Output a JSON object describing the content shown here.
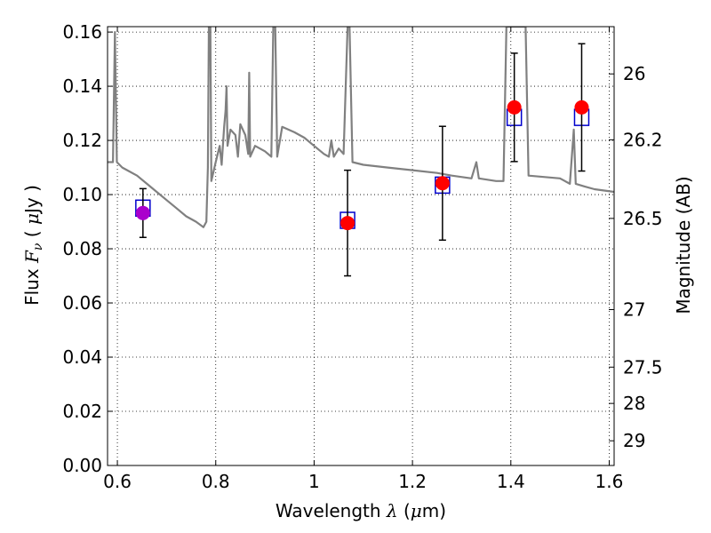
{
  "chart_data": {
    "type": "scatter",
    "xlabel": {
      "prefix": "Wavelength ",
      "lambda": "λ",
      "unit_open": " (",
      "mu": "μ",
      "unit_close": "m)"
    },
    "ylabel": {
      "prefix": "Flux ",
      "F": "F",
      "nu": "ν",
      "unit_open": " ( ",
      "mu": "μ",
      "unit_close": "Jy )"
    },
    "y2label": "Magnitude (AB)",
    "xlim": [
      0.58,
      1.61
    ],
    "ylim": [
      0.0,
      0.162
    ],
    "x_ticks": [
      {
        "value": 0.6,
        "label": "0.6"
      },
      {
        "value": 0.8,
        "label": "0.8"
      },
      {
        "value": 1.0,
        "label": "1"
      },
      {
        "value": 1.2,
        "label": "1.2"
      },
      {
        "value": 1.4,
        "label": "1.4"
      },
      {
        "value": 1.6,
        "label": "1.6"
      }
    ],
    "y_ticks": [
      {
        "value": 0.0,
        "label": "0.00"
      },
      {
        "value": 0.02,
        "label": "0.02"
      },
      {
        "value": 0.04,
        "label": "0.04"
      },
      {
        "value": 0.06,
        "label": "0.06"
      },
      {
        "value": 0.08,
        "label": "0.08"
      },
      {
        "value": 0.1,
        "label": "0.10"
      },
      {
        "value": 0.12,
        "label": "0.12"
      },
      {
        "value": 0.14,
        "label": "0.14"
      },
      {
        "value": 0.16,
        "label": "0.16"
      }
    ],
    "mag_ticks": [
      {
        "value": 26,
        "label": "26"
      },
      {
        "value": 26.2,
        "label": "26.2"
      },
      {
        "value": 26.5,
        "label": "26.5"
      },
      {
        "value": 27,
        "label": "27"
      },
      {
        "value": 27.5,
        "label": "27.5"
      },
      {
        "value": 28,
        "label": "28"
      },
      {
        "value": 29,
        "label": "29"
      }
    ],
    "grid": true,
    "observed": [
      {
        "x": 0.652,
        "y": 0.0932,
        "err": 0.009,
        "color": "#aa00cc"
      },
      {
        "x": 1.068,
        "y": 0.0895,
        "err": 0.0195,
        "color": "#ff0000"
      },
      {
        "x": 1.261,
        "y": 0.1042,
        "err": 0.021,
        "color": "#ff0000"
      },
      {
        "x": 1.407,
        "y": 0.1322,
        "err": 0.02,
        "color": "#ff0000"
      },
      {
        "x": 1.544,
        "y": 0.1322,
        "err": 0.0235,
        "color": "#ff0000"
      }
    ],
    "model_bands": [
      {
        "x": 0.652,
        "y": 0.095
      },
      {
        "x": 1.068,
        "y": 0.0905
      },
      {
        "x": 1.261,
        "y": 0.1035
      },
      {
        "x": 1.407,
        "y": 0.1285
      },
      {
        "x": 1.544,
        "y": 0.1285
      }
    ],
    "sed": [
      [
        0.58,
        0.112
      ],
      [
        0.591,
        0.112
      ],
      [
        0.595,
        0.16
      ],
      [
        0.599,
        0.112
      ],
      [
        0.61,
        0.11
      ],
      [
        0.62,
        0.109
      ],
      [
        0.64,
        0.107
      ],
      [
        0.66,
        0.104
      ],
      [
        0.68,
        0.101
      ],
      [
        0.7,
        0.098
      ],
      [
        0.72,
        0.095
      ],
      [
        0.74,
        0.092
      ],
      [
        0.76,
        0.09
      ],
      [
        0.775,
        0.088
      ],
      [
        0.781,
        0.09
      ],
      [
        0.784,
        0.11
      ],
      [
        0.786,
        0.162
      ],
      [
        0.789,
        0.162
      ],
      [
        0.791,
        0.105
      ],
      [
        0.8,
        0.112
      ],
      [
        0.808,
        0.118
      ],
      [
        0.812,
        0.111
      ],
      [
        0.817,
        0.125
      ],
      [
        0.82,
        0.131
      ],
      [
        0.822,
        0.14
      ],
      [
        0.824,
        0.118
      ],
      [
        0.83,
        0.124
      ],
      [
        0.84,
        0.122
      ],
      [
        0.845,
        0.114
      ],
      [
        0.85,
        0.126
      ],
      [
        0.86,
        0.122
      ],
      [
        0.866,
        0.115
      ],
      [
        0.868,
        0.145
      ],
      [
        0.87,
        0.114
      ],
      [
        0.88,
        0.118
      ],
      [
        0.9,
        0.116
      ],
      [
        0.913,
        0.114
      ],
      [
        0.917,
        0.162
      ],
      [
        0.921,
        0.162
      ],
      [
        0.925,
        0.114
      ],
      [
        0.935,
        0.125
      ],
      [
        0.96,
        0.123
      ],
      [
        0.98,
        0.121
      ],
      [
        1.0,
        0.118
      ],
      [
        1.02,
        0.115
      ],
      [
        1.03,
        0.114
      ],
      [
        1.035,
        0.12
      ],
      [
        1.04,
        0.114
      ],
      [
        1.05,
        0.117
      ],
      [
        1.06,
        0.115
      ],
      [
        1.068,
        0.162
      ],
      [
        1.072,
        0.162
      ],
      [
        1.078,
        0.112
      ],
      [
        1.1,
        0.111
      ],
      [
        1.15,
        0.11
      ],
      [
        1.2,
        0.109
      ],
      [
        1.25,
        0.108
      ],
      [
        1.28,
        0.107
      ],
      [
        1.32,
        0.106
      ],
      [
        1.33,
        0.112
      ],
      [
        1.335,
        0.106
      ],
      [
        1.37,
        0.105
      ],
      [
        1.385,
        0.105
      ],
      [
        1.391,
        0.162
      ],
      [
        1.43,
        0.162
      ],
      [
        1.436,
        0.107
      ],
      [
        1.5,
        0.106
      ],
      [
        1.52,
        0.104
      ],
      [
        1.528,
        0.124
      ],
      [
        1.532,
        0.104
      ],
      [
        1.55,
        0.103
      ],
      [
        1.57,
        0.102
      ],
      [
        1.61,
        0.101
      ]
    ],
    "colors": {
      "sed": "#808080",
      "model_band": "#0000cc",
      "errorbar": "#000000",
      "grid": "#000000"
    }
  }
}
